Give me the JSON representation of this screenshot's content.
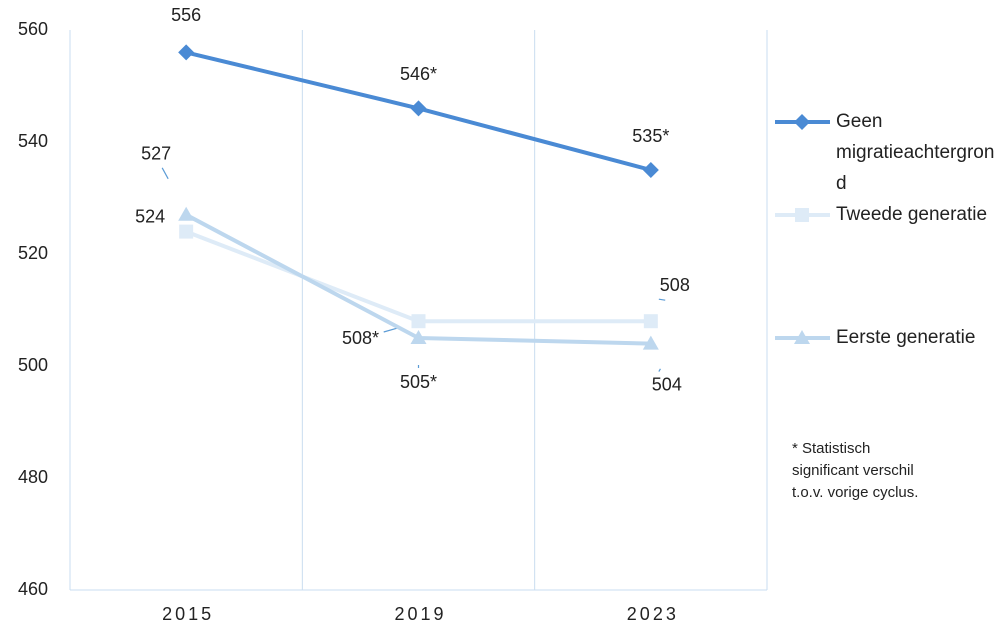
{
  "chart_data": {
    "type": "line",
    "categories": [
      "2015",
      "2019",
      "2023"
    ],
    "series": [
      {
        "name": "Geen migratieachtergrond",
        "color": "#4a8ad4",
        "marker": "diamond",
        "values": [
          556,
          546,
          535
        ],
        "value_labels": [
          "556",
          "546*",
          "535*"
        ]
      },
      {
        "name": "Tweede generatie",
        "color": "#deebf7",
        "marker": "square",
        "values": [
          524,
          508,
          508
        ],
        "value_labels": [
          "524",
          "508*",
          "508"
        ]
      },
      {
        "name": "Eerste generatie",
        "color": "#bdd7ee",
        "marker": "triangle",
        "values": [
          527,
          505,
          504
        ],
        "value_labels": [
          "527",
          "505*",
          "504"
        ]
      }
    ],
    "ylim": [
      460,
      560
    ],
    "yticks": [
      460,
      480,
      500,
      520,
      540,
      560
    ],
    "grid": "vertical",
    "legend": "right",
    "annotation": "* Statistisch significant verschil t.o.v. vorige cyclus."
  }
}
